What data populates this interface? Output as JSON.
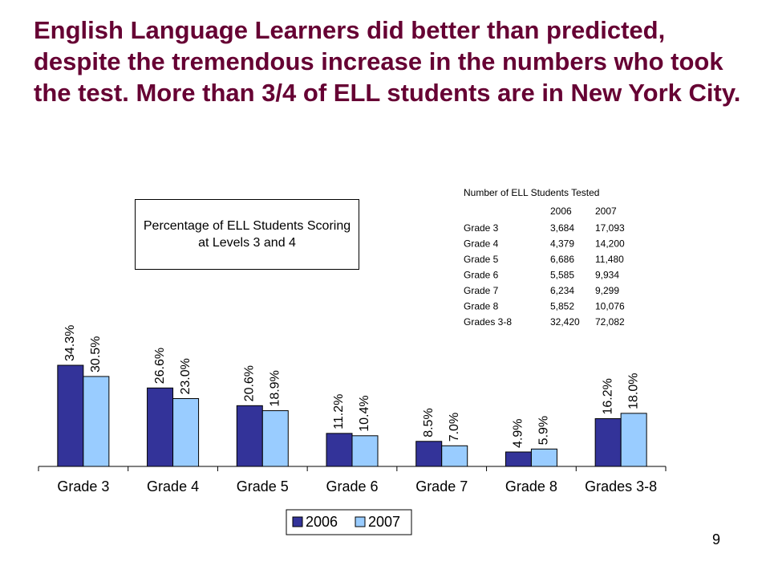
{
  "slide_title": "English Language Learners did better than predicted, despite the tremendous increase in the numbers who took the test. More than 3/4 of ELL students are in New York City.",
  "table": {
    "title": "Number of ELL Students Tested",
    "columns": [
      "2006",
      "2007"
    ],
    "rows": [
      [
        "Grade 3",
        "3,684",
        "17,093"
      ],
      [
        "Grade 4",
        "4,379",
        "14,200"
      ],
      [
        "Grade 5",
        "6,686",
        "11,480"
      ],
      [
        "Grade 6",
        "5,585",
        "9,934"
      ],
      [
        "Grade 7",
        "6,234",
        "9,299"
      ],
      [
        "Grade 8",
        "5,852",
        "10,076"
      ],
      [
        "Grades 3-8",
        "32,420",
        "72,082"
      ]
    ]
  },
  "page_number": "9",
  "chart_data": {
    "type": "bar",
    "title": "Percentage of ELL Students Scoring at Levels 3 and 4",
    "categories": [
      "Grade 3",
      "Grade 4",
      "Grade 5",
      "Grade 6",
      "Grade 7",
      "Grade 8",
      "Grades 3-8"
    ],
    "series": [
      {
        "name": "2006",
        "color": "#333399",
        "values": [
          34.3,
          26.6,
          20.6,
          11.2,
          8.5,
          4.9,
          16.2
        ],
        "value_labels": [
          "34.3%",
          "26.6%",
          "20.6%",
          "11.2%",
          "8.5%",
          "4.9%",
          "16.2%"
        ]
      },
      {
        "name": "2007",
        "color": "#99ccff",
        "values": [
          30.5,
          23.0,
          18.9,
          10.4,
          7.0,
          5.9,
          18.0
        ],
        "value_labels": [
          "30.5%",
          "23.0%",
          "18.9%",
          "10.4%",
          "7.0%",
          "5.9%",
          "18.0%"
        ]
      }
    ]
  }
}
